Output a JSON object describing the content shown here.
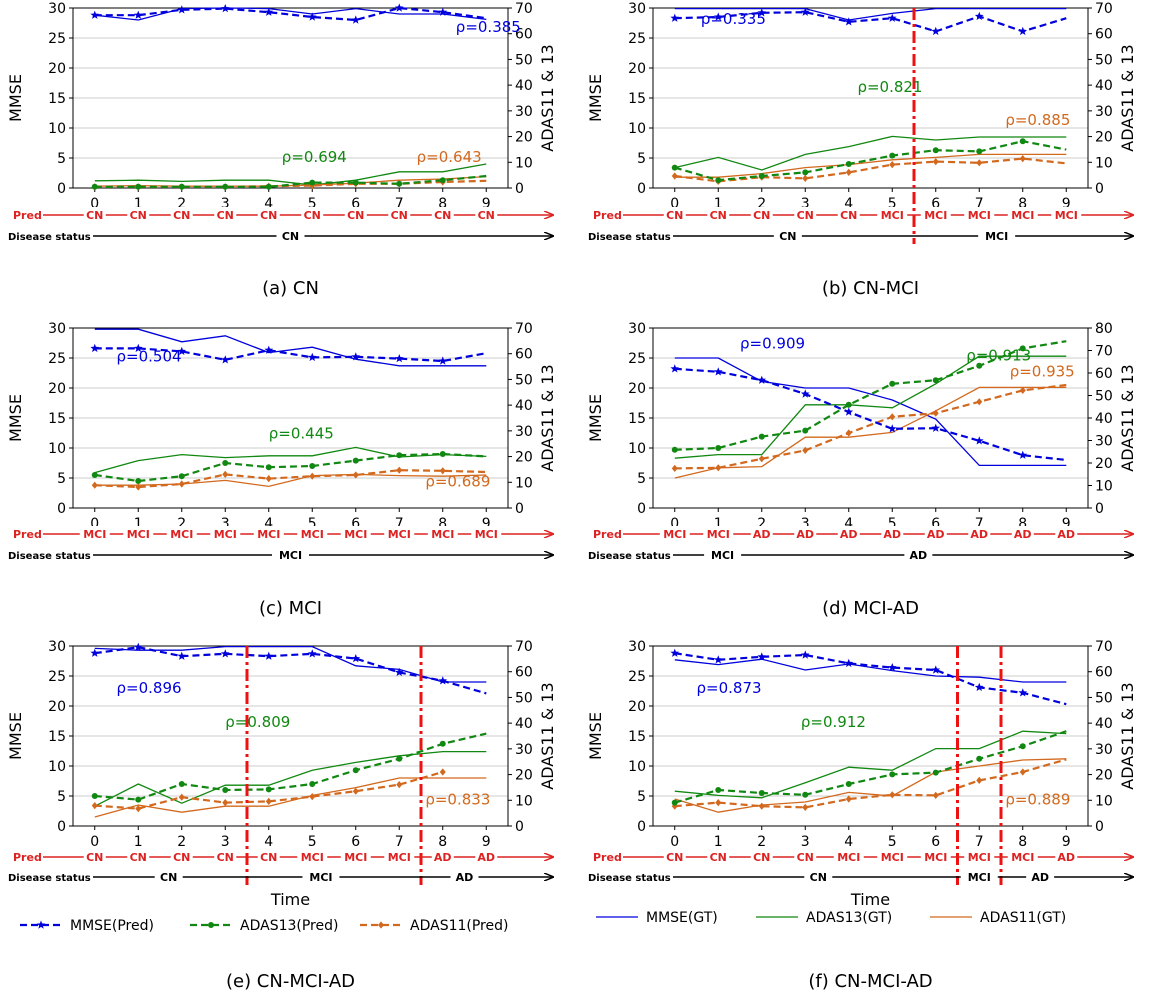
{
  "colors": {
    "mmse": "#0000dd",
    "adas13": "#118811",
    "adas11": "#d2691e",
    "pred": "#dd2222",
    "status": "#000000",
    "grid": "#cccccc"
  },
  "axes": {
    "left_label": "MMSE",
    "right_label": "ADAS11 & 13",
    "pred_label": "Pred",
    "status_label": "Disease status",
    "time_label": "Time"
  },
  "legend": [
    {
      "name": "MMSE(Pred)",
      "style": "pred",
      "color": "mmse",
      "marker": "star"
    },
    {
      "name": "ADAS13(Pred)",
      "style": "pred",
      "color": "adas13",
      "marker": "dot"
    },
    {
      "name": "ADAS11(Pred)",
      "style": "pred",
      "color": "adas11",
      "marker": "diamond"
    },
    {
      "name": "MMSE(GT)",
      "style": "gt",
      "color": "mmse"
    },
    {
      "name": "ADAS13(GT)",
      "style": "gt",
      "color": "adas13"
    },
    {
      "name": "ADAS11(GT)",
      "style": "gt",
      "color": "adas11"
    }
  ],
  "chart_data": [
    {
      "type": "line",
      "caption": "(a) CN",
      "x": [
        0,
        1,
        2,
        3,
        4,
        5,
        6,
        7,
        8,
        9
      ],
      "ylim_left": [
        0,
        30
      ],
      "ylim_right": [
        0,
        70
      ],
      "left_ticks": [
        0,
        5,
        10,
        15,
        20,
        25,
        30
      ],
      "right_ticks": [
        0,
        10,
        20,
        30,
        40,
        50,
        60,
        70
      ],
      "mmse_pred": [
        28.8,
        28.8,
        29.7,
        29.9,
        29.3,
        28.5,
        28,
        30,
        29.3,
        28.3
      ],
      "mmse_gt": [
        28.8,
        28,
        29.9,
        30,
        29.9,
        29,
        29.9,
        29,
        29,
        28.1
      ],
      "adas13_pred": [
        0.2,
        0.2,
        0.2,
        0.2,
        0.2,
        0.9,
        0.9,
        0.7,
        1.3,
        2
      ],
      "adas13_gt": [
        1.2,
        1.3,
        1.1,
        1.3,
        1.3,
        0.5,
        1.3,
        2.7,
        2.7,
        4
      ],
      "adas11_pred": [
        0.2,
        0.2,
        0.2,
        0.2,
        0.3,
        0.4,
        0.7,
        0.7,
        1,
        1.2
      ],
      "adas11_gt": [
        0.3,
        0.4,
        0.3,
        0.3,
        0.3,
        0.5,
        0.8,
        1.3,
        1.5,
        1.9
      ],
      "rho": [
        {
          "text": "ρ=0.385",
          "color": "mmse",
          "x": 8.3,
          "y": 26
        },
        {
          "text": "ρ=0.694",
          "color": "adas13",
          "x": 4.3,
          "y": 4.3
        },
        {
          "text": "ρ=0.643",
          "color": "adas11",
          "x": 7.4,
          "y": 4.3
        }
      ],
      "pred_labels": [
        "CN",
        "CN",
        "CN",
        "CN",
        "CN",
        "CN",
        "CN",
        "CN",
        "CN",
        "CN"
      ],
      "status": [
        {
          "text": "CN",
          "x": 4.5
        }
      ],
      "vlines": []
    },
    {
      "type": "line",
      "caption": "(b) CN-MCI",
      "x": [
        0,
        1,
        2,
        3,
        4,
        5,
        6,
        7,
        8,
        9
      ],
      "ylim_left": [
        0,
        30
      ],
      "ylim_right": [
        0,
        70
      ],
      "left_ticks": [
        0,
        5,
        10,
        15,
        20,
        25,
        30
      ],
      "right_ticks": [
        0,
        10,
        20,
        30,
        40,
        50,
        60,
        70
      ],
      "mmse_pred": [
        28.3,
        28.5,
        29.2,
        29.3,
        27.7,
        28.3,
        26.1,
        28.6,
        26.1,
        28.3
      ],
      "mmse_gt": [
        29.9,
        29.9,
        29.9,
        29.9,
        28,
        29.1,
        29.9,
        29.9,
        29.9,
        29.9
      ],
      "adas13_pred": [
        3.4,
        1.3,
        2,
        2.6,
        4,
        5.4,
        6.3,
        6.1,
        7.8,
        6.4
      ],
      "adas13_gt": [
        3.4,
        5.1,
        3,
        5.6,
        6.9,
        8.6,
        8,
        8.5,
        8.5,
        8.5
      ],
      "adas11_pred": [
        2,
        1.1,
        1.8,
        1.6,
        2.6,
        3.9,
        4.4,
        4.2,
        4.9,
        4.1
      ],
      "adas11_gt": [
        1.8,
        1.8,
        2.4,
        3.4,
        3.9,
        4.7,
        5.1,
        5.6,
        5.6,
        5.6
      ],
      "rho": [
        {
          "text": "ρ=0.335",
          "color": "mmse",
          "x": 0.6,
          "y": 27.3
        },
        {
          "text": "ρ=0.821",
          "color": "adas13",
          "x": 4.2,
          "y": 16
        },
        {
          "text": "ρ=0.885",
          "color": "adas11",
          "x": 7.6,
          "y": 10.5
        }
      ],
      "pred_labels": [
        "CN",
        "CN",
        "CN",
        "CN",
        "CN",
        "MCI",
        "MCI",
        "MCI",
        "MCI",
        "MCI"
      ],
      "status": [
        {
          "text": "CN",
          "x": 2.6
        },
        {
          "text": "MCI",
          "x": 7.4
        }
      ],
      "vlines": [
        5.5
      ]
    },
    {
      "type": "line",
      "caption": "(c) MCI",
      "x": [
        0,
        1,
        2,
        3,
        4,
        5,
        6,
        7,
        8,
        9
      ],
      "ylim_left": [
        0,
        30
      ],
      "ylim_right": [
        0,
        70
      ],
      "left_ticks": [
        0,
        5,
        10,
        15,
        20,
        25,
        30
      ],
      "right_ticks": [
        0,
        10,
        20,
        30,
        40,
        50,
        60,
        70
      ],
      "mmse_pred": [
        26.6,
        26.6,
        26.1,
        24.7,
        26.3,
        25.1,
        25.2,
        24.9,
        24.5,
        25.8
      ],
      "mmse_gt": [
        29.8,
        29.8,
        27.7,
        28.7,
        25.9,
        26.8,
        24.8,
        23.7,
        23.7,
        23.7
      ],
      "adas13_pred": [
        5.5,
        4.5,
        5.3,
        7.5,
        6.8,
        7,
        7.9,
        8.8,
        9,
        8.6
      ],
      "adas13_gt": [
        5.9,
        7.9,
        8.9,
        8.4,
        8.7,
        8.7,
        10.1,
        8.5,
        8.9,
        8.6
      ],
      "adas11_pred": [
        3.8,
        3.5,
        4,
        5.6,
        4.9,
        5.3,
        5.5,
        6.3,
        6.2,
        6
      ],
      "adas11_gt": [
        3.8,
        3.8,
        4,
        4.6,
        3.6,
        5.4,
        5.6,
        5.4,
        5.3,
        5.5
      ],
      "rho": [
        {
          "text": "ρ=0.504",
          "color": "mmse",
          "x": 0.5,
          "y": 24.4
        },
        {
          "text": "ρ=0.445",
          "color": "adas13",
          "x": 4,
          "y": 11.6
        },
        {
          "text": "ρ=0.689",
          "color": "adas11",
          "x": 7.6,
          "y": 3.6
        }
      ],
      "pred_labels": [
        "MCI",
        "MCI",
        "MCI",
        "MCI",
        "MCI",
        "MCI",
        "MCI",
        "MCI",
        "MCI",
        "MCI"
      ],
      "status": [
        {
          "text": "MCI",
          "x": 4.5
        }
      ],
      "vlines": []
    },
    {
      "type": "line",
      "caption": "(d) MCI-AD",
      "x": [
        0,
        1,
        2,
        3,
        4,
        5,
        6,
        7,
        8,
        9
      ],
      "ylim_left": [
        0,
        30
      ],
      "ylim_right": [
        0,
        80
      ],
      "left_ticks": [
        0,
        5,
        10,
        15,
        20,
        25,
        30
      ],
      "right_ticks": [
        0,
        10,
        20,
        30,
        40,
        50,
        60,
        70,
        80
      ],
      "mmse_pred": [
        23.2,
        22.7,
        21.3,
        19,
        16,
        13.2,
        13.3,
        11.2,
        8.8,
        8
      ],
      "mmse_gt": [
        25,
        25,
        21.1,
        20,
        20,
        18,
        14.8,
        7.1,
        7.1,
        7.1
      ],
      "adas13_pred": [
        9.7,
        10,
        11.9,
        12.9,
        17.2,
        20.7,
        21.3,
        23.7,
        26.6,
        27.8
      ],
      "adas13_gt": [
        8.3,
        8.9,
        8.9,
        17.2,
        17.2,
        16.7,
        20.7,
        25.3,
        25.3,
        25.3
      ],
      "adas11_pred": [
        6.6,
        6.7,
        8.2,
        9.6,
        12.5,
        15.2,
        15.8,
        17.7,
        19.6,
        20.5
      ],
      "adas11_gt": [
        5,
        6.7,
        6.9,
        11.8,
        11.8,
        12.6,
        16.2,
        20.1,
        20.1,
        20.1
      ],
      "rho": [
        {
          "text": "ρ=0.909",
          "color": "mmse",
          "x": 1.5,
          "y": 26.6
        },
        {
          "text": "ρ=0.913",
          "color": "adas13",
          "x": 6.7,
          "y": 24.6
        },
        {
          "text": "ρ=0.935",
          "color": "adas11",
          "x": 7.7,
          "y": 21.9
        }
      ],
      "pred_labels": [
        "MCI",
        "MCI",
        "AD",
        "AD",
        "AD",
        "AD",
        "AD",
        "AD",
        "AD",
        "AD"
      ],
      "status": [
        {
          "text": "MCI",
          "x": 1.1
        },
        {
          "text": "AD",
          "x": 5.6
        }
      ],
      "vlines": []
    },
    {
      "type": "line",
      "caption": "(e) CN-MCI-AD",
      "x": [
        0,
        1,
        2,
        3,
        4,
        5,
        6,
        7,
        8,
        9
      ],
      "ylim_left": [
        0,
        30
      ],
      "ylim_right": [
        0,
        70
      ],
      "left_ticks": [
        0,
        5,
        10,
        15,
        20,
        25,
        30
      ],
      "right_ticks": [
        0,
        10,
        20,
        30,
        40,
        50,
        60,
        70
      ],
      "mmse_pred": [
        28.8,
        29.8,
        28.3,
        28.7,
        28.3,
        28.7,
        27.9,
        25.6,
        24.2,
        22.1
      ],
      "mmse_gt": [
        29.6,
        29.3,
        29.3,
        29.9,
        29.9,
        29.9,
        26.7,
        26.1,
        24,
        24
      ],
      "adas13_pred": [
        5,
        4.4,
        7,
        6,
        6.1,
        7,
        9.3,
        11.2,
        13.7,
        15.4
      ],
      "adas13_gt": [
        3.3,
        7,
        3.8,
        6.8,
        6.8,
        9.3,
        10.6,
        11.7,
        12.4,
        12.4
      ],
      "adas11_pred": [
        3.4,
        2.9,
        4.8,
        3.9,
        4.1,
        4.9,
        5.8,
        6.9,
        9,
        null
      ],
      "adas11_gt": [
        1.5,
        3.5,
        2.3,
        3.3,
        3.3,
        5.1,
        6.4,
        8,
        8,
        8
      ],
      "rho": [
        {
          "text": "ρ=0.896",
          "color": "mmse",
          "x": 0.5,
          "y": 22.2
        },
        {
          "text": "ρ=0.809",
          "color": "adas13",
          "x": 3,
          "y": 16.5
        },
        {
          "text": "ρ=0.833",
          "color": "adas11",
          "x": 7.6,
          "y": 3.6
        }
      ],
      "pred_labels": [
        "CN",
        "CN",
        "CN",
        "CN",
        "CN",
        "MCI",
        "MCI",
        "MCI",
        "AD",
        "AD"
      ],
      "status": [
        {
          "text": "CN",
          "x": 1.7
        },
        {
          "text": "MCI",
          "x": 5.2
        },
        {
          "text": "AD",
          "x": 8.5
        }
      ],
      "vlines": [
        3.5,
        7.5
      ]
    },
    {
      "type": "line",
      "caption": "(f) CN-MCI-AD",
      "x": [
        0,
        1,
        2,
        3,
        4,
        5,
        6,
        7,
        8,
        9
      ],
      "ylim_left": [
        0,
        30
      ],
      "ylim_right": [
        0,
        70
      ],
      "left_ticks": [
        0,
        5,
        10,
        15,
        20,
        25,
        30
      ],
      "right_ticks": [
        0,
        10,
        20,
        30,
        40,
        50,
        60,
        70
      ],
      "mmse_pred": [
        28.8,
        27.7,
        28.2,
        28.5,
        27.1,
        26.4,
        26,
        23.1,
        22.2,
        20.3
      ],
      "mmse_gt": [
        27.7,
        26.9,
        27.8,
        26,
        27,
        25.9,
        25,
        24.8,
        24,
        24
      ],
      "adas13_pred": [
        3.9,
        6,
        5.5,
        5.2,
        7,
        8.6,
        8.9,
        11.2,
        13.3,
        15.8
      ],
      "adas13_gt": [
        5.8,
        5.1,
        4.7,
        7.2,
        9.8,
        9.3,
        12.9,
        12.9,
        15.8,
        15.4
      ],
      "adas11_pred": [
        3.3,
        3.9,
        3.3,
        3.1,
        4.5,
        5.2,
        5.1,
        7.6,
        9,
        11.1
      ],
      "adas11_gt": [
        4.5,
        2.3,
        3.5,
        4,
        5.6,
        5,
        9,
        10,
        11,
        11.2
      ],
      "rho": [
        {
          "text": "ρ=0.873",
          "color": "mmse",
          "x": 0.5,
          "y": 22.2
        },
        {
          "text": "ρ=0.912",
          "color": "adas13",
          "x": 2.9,
          "y": 16.5
        },
        {
          "text": "ρ=0.889",
          "color": "adas11",
          "x": 7.6,
          "y": 3.6
        }
      ],
      "pred_labels": [
        "CN",
        "CN",
        "CN",
        "CN",
        "MCI",
        "MCI",
        "MCI",
        "MCI",
        "MCI",
        "AD"
      ],
      "status": [
        {
          "text": "CN",
          "x": 3.3
        },
        {
          "text": "MCI",
          "x": 7
        },
        {
          "text": "AD",
          "x": 8.4
        }
      ],
      "vlines": [
        6.5,
        7.5
      ]
    }
  ]
}
